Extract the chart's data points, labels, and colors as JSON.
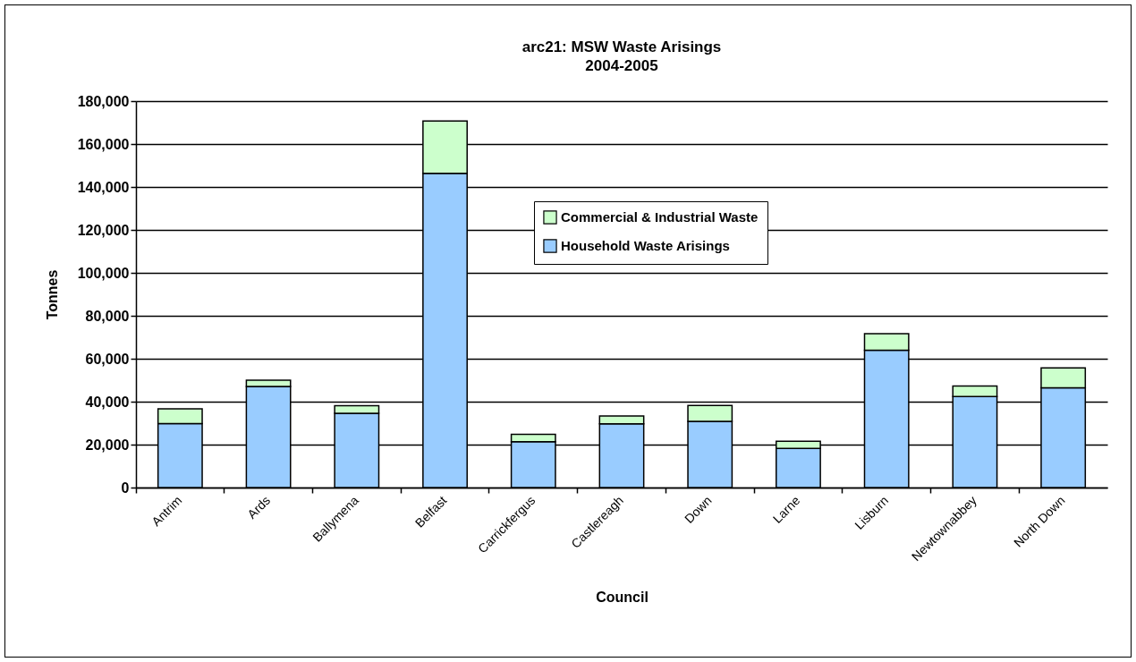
{
  "chart_data": {
    "type": "bar",
    "stacked": true,
    "title": "arc21: MSW Waste Arisings",
    "subtitle": "2004-2005",
    "xlabel": "Council",
    "ylabel": "Tonnes",
    "categories": [
      "Antrim",
      "Ards",
      "Ballymena",
      "Belfast",
      "Carrickfergus",
      "Castlereagh",
      "Down",
      "Larne",
      "Lisburn",
      "Newtownabbey",
      "North Down"
    ],
    "series": [
      {
        "name": "Household Waste Arisings",
        "color": "#99ccff",
        "values": [
          29800,
          47100,
          34600,
          146400,
          21400,
          29700,
          30800,
          18200,
          64000,
          42400,
          46500
        ]
      },
      {
        "name": "Commercial & Industrial Waste",
        "color": "#ccffcc",
        "values": [
          6900,
          2900,
          3500,
          24300,
          3400,
          3600,
          7400,
          3400,
          7700,
          4900,
          9200
        ]
      }
    ],
    "ylim": [
      0,
      180000
    ],
    "yticks": [
      0,
      {
        "value": 20000,
        "label": "20,000"
      },
      {
        "value": 40000,
        "label": "40,000"
      },
      {
        "value": 60000,
        "label": "60,000"
      },
      {
        "value": 80000,
        "label": "80,000"
      },
      {
        "value": 100000,
        "label": "100,000"
      },
      {
        "value": 120000,
        "label": "120,000"
      },
      {
        "value": 140000,
        "label": "140,000"
      },
      {
        "value": 160000,
        "label": "160,000"
      },
      {
        "value": 180000,
        "label": "180,000"
      }
    ],
    "grid": "y",
    "legend": "top right"
  }
}
